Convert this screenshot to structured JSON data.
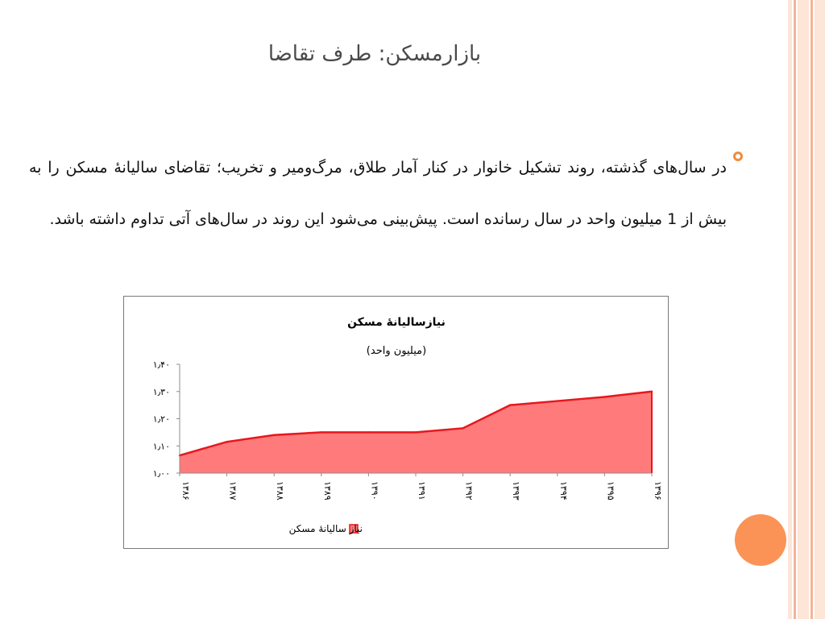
{
  "slide": {
    "title": "بازارمسکن: طرف تقاضا",
    "bullet_text": "در سال‌های گذشته، روند تشکیل خانوار در کنار آمار طلاق، مرگ‌ومیر و تخریب؛ تقاضای سالیانۀ مسکن را به بیش از 1 میلیون واحد در سال رسانده است. پیش‌بینی می‌شود این روند در سال‌های آتی تداوم داشته باشد."
  },
  "colors": {
    "area_fill": "#ff7b7b",
    "area_line": "#e8161c",
    "bullet": "#f08c3a",
    "accent_dot": "#fb9357",
    "stripe_light": "#fde5d8",
    "stripe_dark": "#f5b399"
  },
  "chart_data": {
    "type": "area",
    "title": "نیازسالیانۀ مسکن",
    "subtitle": "(میلیون واحد)",
    "categories": [
      "۱۳۸۶",
      "۱۳۸۷",
      "۱۳۸۸",
      "۱۳۸۹",
      "۱۳۹۰",
      "۱۳۹۱",
      "۱۳۹۲",
      "۱۳۹۳",
      "۱۳۹۴",
      "۱۳۹۵",
      "۱۳۹۶"
    ],
    "series": [
      {
        "name": "نیاز سالیانۀ مسکن",
        "values": [
          1.065,
          1.115,
          1.14,
          1.15,
          1.15,
          1.15,
          1.165,
          1.25,
          1.265,
          1.28,
          1.3
        ]
      }
    ],
    "ylim": [
      1.0,
      1.4
    ],
    "yticks": [
      1.0,
      1.1,
      1.2,
      1.3,
      1.4
    ],
    "ytick_labels": [
      "۱٫۰۰",
      "۱٫۱۰",
      "۱٫۲۰",
      "۱٫۳۰",
      "۱٫۴۰"
    ],
    "grid": false,
    "legend": "bottom"
  }
}
